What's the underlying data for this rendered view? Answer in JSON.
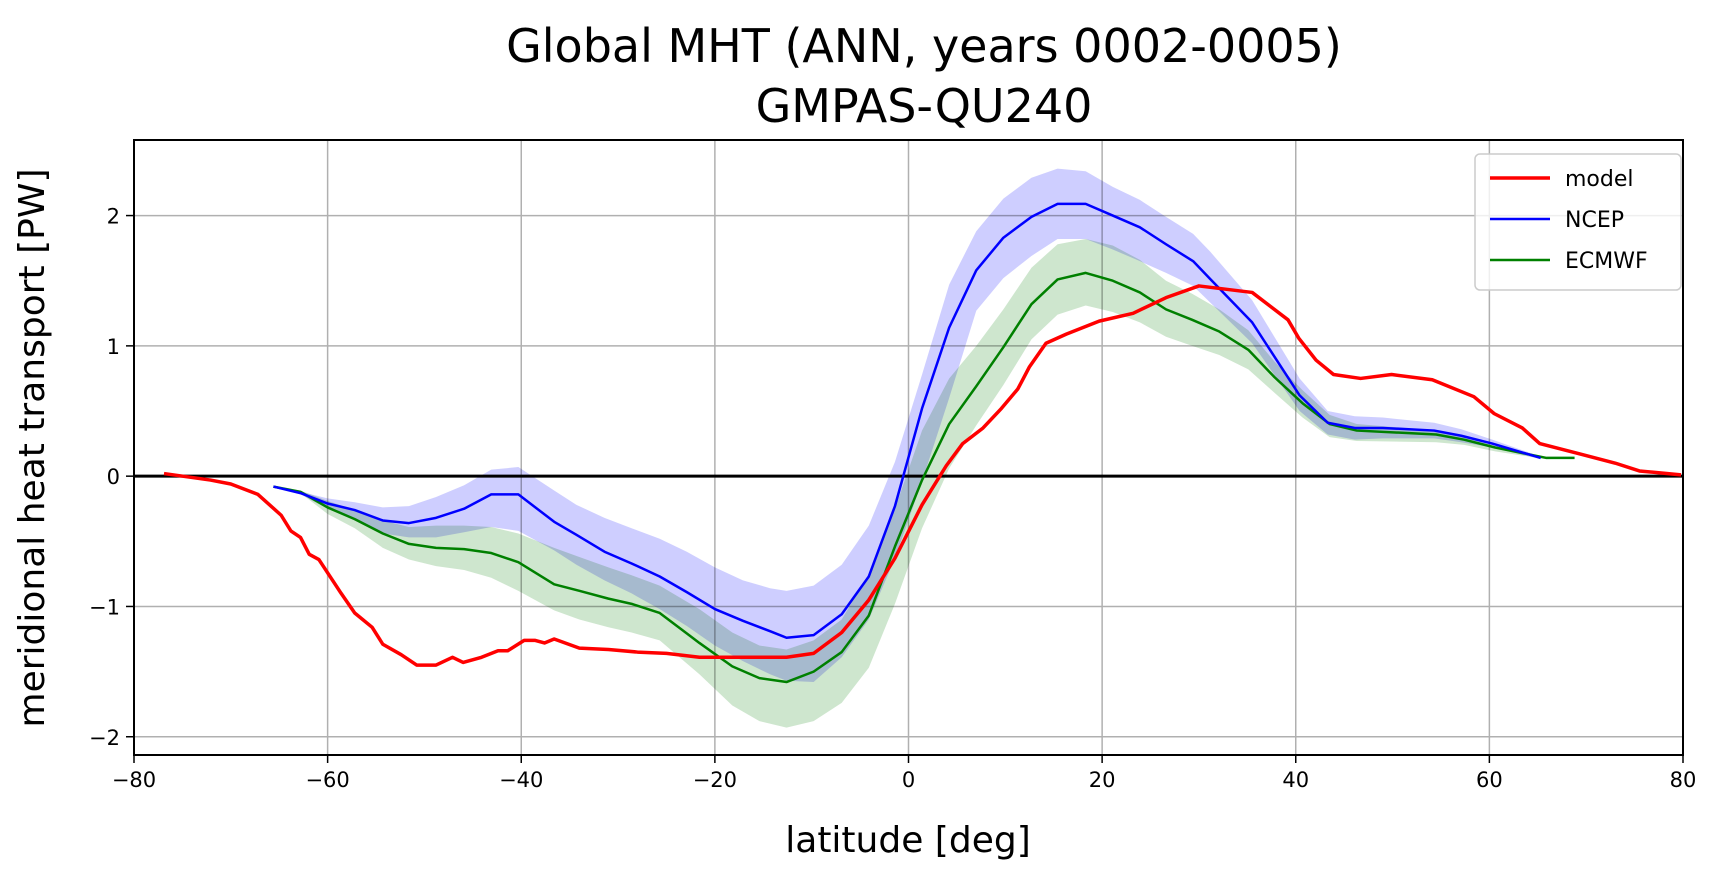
{
  "chart_data": {
    "type": "line",
    "title": "Global MHT (ANN, years 0002-0005)",
    "subtitle": "GMPAS-QU240",
    "xlabel": "latitude [deg]",
    "ylabel": "meridional heat transport [PW]",
    "xlim": [
      -80,
      80
    ],
    "ylim": [
      -2.14,
      2.58
    ],
    "xticks": [
      -80,
      -60,
      -40,
      -20,
      0,
      20,
      40,
      60,
      80
    ],
    "xtick_labels": [
      "−80",
      "−60",
      "−40",
      "−20",
      "0",
      "20",
      "40",
      "60",
      "80"
    ],
    "yticks": [
      -2,
      -1,
      0,
      1,
      2
    ],
    "ytick_labels": [
      "−2",
      "−1",
      "0",
      "1",
      "2"
    ],
    "grid": true,
    "zero_line": true,
    "legend": {
      "position": "top-right",
      "entries": [
        "model",
        "NCEP",
        "ECMWF"
      ]
    },
    "series": [
      {
        "name": "model",
        "color": "#ff0000",
        "x": [
          -76.9,
          -72.1,
          -70,
          -67.2,
          -64.8,
          -63.8,
          -62.8,
          -61.9,
          -60.9,
          -58.6,
          -57.2,
          -55.4,
          -54.3,
          -52.4,
          -50.8,
          -48.8,
          -47.1,
          -46,
          -44.1,
          -42.4,
          -41.4,
          -39.7,
          -38.6,
          -37.6,
          -36.6,
          -34,
          -31,
          -28,
          -25,
          -21.6,
          -12.6,
          -9.8,
          -6.9,
          -4.1,
          -1.4,
          1.4,
          3.9,
          5.6,
          7.7,
          9.6,
          11.3,
          12.5,
          14.2,
          16.3,
          19.7,
          23.2,
          26.6,
          30,
          35.5,
          39.2,
          40.3,
          42.1,
          43.9,
          46.7,
          49.9,
          54.1,
          58.4,
          60.5,
          63.4,
          65.2,
          69.4,
          73,
          75.5,
          79.8
        ],
        "y": [
          0.02,
          -0.03,
          -0.06,
          -0.14,
          -0.3,
          -0.42,
          -0.47,
          -0.6,
          -0.64,
          -0.9,
          -1.05,
          -1.16,
          -1.29,
          -1.37,
          -1.45,
          -1.45,
          -1.39,
          -1.43,
          -1.39,
          -1.34,
          -1.34,
          -1.26,
          -1.26,
          -1.28,
          -1.25,
          -1.32,
          -1.33,
          -1.35,
          -1.36,
          -1.39,
          -1.39,
          -1.36,
          -1.2,
          -0.95,
          -0.63,
          -0.22,
          0.08,
          0.25,
          0.37,
          0.52,
          0.67,
          0.84,
          1.02,
          1.09,
          1.19,
          1.25,
          1.37,
          1.46,
          1.41,
          1.2,
          1.06,
          0.89,
          0.78,
          0.75,
          0.78,
          0.74,
          0.61,
          0.48,
          0.37,
          0.25,
          0.17,
          0.1,
          0.04,
          0.01
        ]
      },
      {
        "name": "NCEP",
        "color": "#0000ff",
        "band_color": "#ccccff",
        "x": [
          -65.6,
          -62.8,
          -60,
          -57.2,
          -54.3,
          -51.6,
          -48.8,
          -45.9,
          -43.1,
          -40.3,
          -36.6,
          -34.3,
          -31.4,
          -28.6,
          -25.7,
          -22.9,
          -20,
          -17.1,
          -14.3,
          -12.6,
          -9.8,
          -6.9,
          -4.1,
          -1.4,
          1.4,
          4.2,
          7,
          9.8,
          12.7,
          15.4,
          18.3,
          21.1,
          23.9,
          26.6,
          29.4,
          31.2,
          35.5,
          40.4,
          43.3,
          46.1,
          49,
          54.3,
          57.1,
          60.3,
          65.3
        ],
        "y": [
          -0.08,
          -0.13,
          -0.21,
          -0.26,
          -0.34,
          -0.36,
          -0.32,
          -0.25,
          -0.14,
          -0.14,
          -0.35,
          -0.45,
          -0.58,
          -0.67,
          -0.77,
          -0.89,
          -1.02,
          -1.11,
          -1.19,
          -1.24,
          -1.22,
          -1.06,
          -0.77,
          -0.23,
          0.52,
          1.14,
          1.58,
          1.83,
          1.99,
          2.09,
          2.09,
          2.0,
          1.91,
          1.78,
          1.65,
          1.51,
          1.18,
          0.62,
          0.41,
          0.37,
          0.37,
          0.35,
          0.31,
          0.25,
          0.14
        ],
        "band_upper": [
          -0.08,
          -0.12,
          -0.17,
          -0.2,
          -0.24,
          -0.23,
          -0.16,
          -0.07,
          0.05,
          0.07,
          -0.11,
          -0.22,
          -0.32,
          -0.4,
          -0.48,
          -0.58,
          -0.7,
          -0.8,
          -0.86,
          -0.88,
          -0.84,
          -0.68,
          -0.38,
          0.11,
          0.78,
          1.47,
          1.88,
          2.13,
          2.29,
          2.36,
          2.34,
          2.22,
          2.12,
          1.99,
          1.86,
          1.72,
          1.35,
          0.75,
          0.5,
          0.46,
          0.45,
          0.41,
          0.36,
          0.28,
          0.15
        ],
        "band_lower": [
          -0.08,
          -0.14,
          -0.25,
          -0.32,
          -0.44,
          -0.47,
          -0.47,
          -0.43,
          -0.39,
          -0.42,
          -0.57,
          -0.68,
          -0.8,
          -0.9,
          -1.02,
          -1.15,
          -1.3,
          -1.42,
          -1.52,
          -1.57,
          -1.58,
          -1.39,
          -1.1,
          -0.63,
          -0.04,
          0.6,
          1.27,
          1.52,
          1.69,
          1.82,
          1.82,
          1.74,
          1.65,
          1.56,
          1.46,
          1.33,
          1.02,
          0.5,
          0.32,
          0.28,
          0.29,
          0.29,
          0.26,
          0.22,
          0.13
        ]
      },
      {
        "name": "ECMWF",
        "color": "#008000",
        "band_color": "#cce5cc",
        "x": [
          -65.6,
          -62.8,
          -60,
          -57.2,
          -54.3,
          -51.6,
          -48.8,
          -45.9,
          -43.1,
          -40.3,
          -36.6,
          -34,
          -31,
          -28.6,
          -25.7,
          -21.6,
          -18.2,
          -15.4,
          -12.6,
          -9.8,
          -6.9,
          -4.1,
          -1.4,
          1.4,
          4.2,
          7,
          9.8,
          12.7,
          15.4,
          18.3,
          21.1,
          23.9,
          26.6,
          29.3,
          32.1,
          35.1,
          37.8,
          40.7,
          43.5,
          46.3,
          54.5,
          57.4,
          60.6,
          65.9,
          68.8
        ],
        "y": [
          -0.08,
          -0.12,
          -0.24,
          -0.33,
          -0.44,
          -0.52,
          -0.55,
          -0.56,
          -0.59,
          -0.66,
          -0.83,
          -0.88,
          -0.94,
          -0.98,
          -1.05,
          -1.28,
          -1.46,
          -1.55,
          -1.58,
          -1.5,
          -1.35,
          -1.07,
          -0.54,
          -0.03,
          0.4,
          0.69,
          0.99,
          1.32,
          1.51,
          1.56,
          1.5,
          1.41,
          1.28,
          1.2,
          1.11,
          0.97,
          0.76,
          0.56,
          0.4,
          0.35,
          0.32,
          0.28,
          0.22,
          0.14,
          0.14
        ],
        "band_upper": [
          -0.08,
          -0.11,
          -0.19,
          -0.26,
          -0.34,
          -0.39,
          -0.38,
          -0.38,
          -0.39,
          -0.44,
          -0.55,
          -0.62,
          -0.7,
          -0.76,
          -0.84,
          -1.02,
          -1.2,
          -1.3,
          -1.33,
          -1.26,
          -1.1,
          -0.75,
          -0.25,
          0.35,
          0.75,
          1.0,
          1.28,
          1.6,
          1.78,
          1.82,
          1.77,
          1.66,
          1.5,
          1.4,
          1.28,
          1.12,
          0.88,
          0.66,
          0.47,
          0.4,
          0.35,
          0.3,
          0.23,
          0.14,
          0.14
        ],
        "band_lower": [
          -0.08,
          -0.13,
          -0.29,
          -0.4,
          -0.55,
          -0.64,
          -0.69,
          -0.72,
          -0.78,
          -0.88,
          -1.03,
          -1.1,
          -1.16,
          -1.2,
          -1.26,
          -1.52,
          -1.76,
          -1.88,
          -1.93,
          -1.88,
          -1.74,
          -1.47,
          -0.98,
          -0.4,
          0.06,
          0.39,
          0.7,
          1.05,
          1.24,
          1.31,
          1.26,
          1.18,
          1.07,
          1.0,
          0.93,
          0.82,
          0.64,
          0.45,
          0.3,
          0.27,
          0.26,
          0.24,
          0.19,
          0.13,
          0.14
        ]
      }
    ]
  }
}
